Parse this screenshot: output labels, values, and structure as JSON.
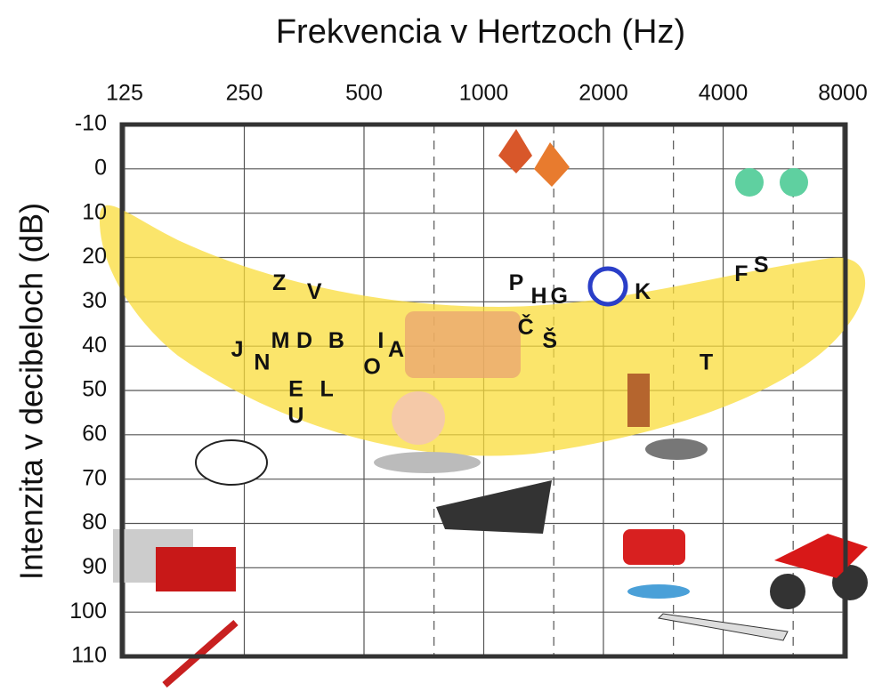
{
  "chart_data": {
    "type": "scatter",
    "title": "Frekvencia v Hertzoch (Hz)",
    "y_label": "Intenzita v decibeloch (dB)",
    "x_scale": "log",
    "y_inverted": true,
    "xlim": [
      125,
      8000
    ],
    "ylim": [
      -10,
      110
    ],
    "xticks": [
      125,
      250,
      500,
      1000,
      2000,
      4000,
      8000
    ],
    "xticks_minor": [
      750,
      1500,
      3000,
      6000
    ],
    "yticks": [
      -10,
      0,
      10,
      20,
      30,
      40,
      50,
      60,
      70,
      80,
      90,
      100,
      110
    ],
    "grid": true,
    "points": {
      "labels": [
        "Z",
        "V",
        "J",
        "N",
        "M",
        "D",
        "B",
        "E",
        "L",
        "U",
        "O",
        "I",
        "A",
        "P",
        "H",
        "G",
        "Č",
        "Š",
        "K",
        "T",
        "F",
        "S"
      ],
      "x": [
        306,
        375,
        240,
        277,
        308,
        354,
        426,
        337,
        403,
        337,
        524,
        551,
        602,
        1207,
        1377,
        1547,
        1275,
        1466,
        2511,
        3628,
        4444,
        4985
      ],
      "y": [
        26,
        28,
        41,
        44,
        39,
        39,
        39,
        50,
        50,
        56,
        45,
        39,
        41,
        26,
        29,
        29,
        36,
        39,
        28,
        44,
        24,
        22
      ]
    }
  }
}
